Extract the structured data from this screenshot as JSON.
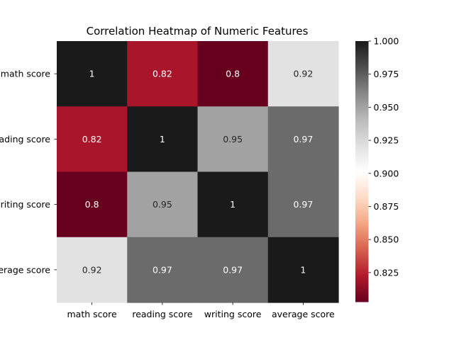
{
  "chart_data": {
    "type": "heatmap",
    "title": "Correlation Heatmap of Numeric Features",
    "row_labels": [
      "math score",
      "reading score",
      "writing score",
      "average score"
    ],
    "col_labels": [
      "math score",
      "reading score",
      "writing score",
      "average score"
    ],
    "values": [
      [
        1.0,
        0.82,
        0.8,
        0.92
      ],
      [
        0.82,
        1.0,
        0.95,
        0.97
      ],
      [
        0.8,
        0.95,
        1.0,
        0.97
      ],
      [
        0.92,
        0.97,
        0.97,
        1.0
      ]
    ],
    "value_labels": [
      [
        "1",
        "0.82",
        "0.8",
        "0.92"
      ],
      [
        "0.82",
        "1",
        "0.95",
        "0.97"
      ],
      [
        "0.8",
        "0.95",
        "1",
        "0.97"
      ],
      [
        "0.92",
        "0.97",
        "0.97",
        "1"
      ]
    ],
    "colormap": "RdGy",
    "colorbar": {
      "min": 0.8027,
      "max": 1.0,
      "ticks": [
        0.825,
        0.85,
        0.875,
        0.9,
        0.925,
        0.95,
        0.975,
        1.0
      ],
      "tick_labels": [
        "0.825",
        "0.850",
        "0.875",
        "0.900",
        "0.925",
        "0.950",
        "0.975",
        "1.000"
      ]
    },
    "colormap_stops": [
      "#67001f",
      "#b2182b",
      "#d6604d",
      "#f4a582",
      "#fddbc7",
      "#ffffff",
      "#e0e0e0",
      "#bababa",
      "#878787",
      "#4d4d4d",
      "#1a1a1a"
    ]
  }
}
